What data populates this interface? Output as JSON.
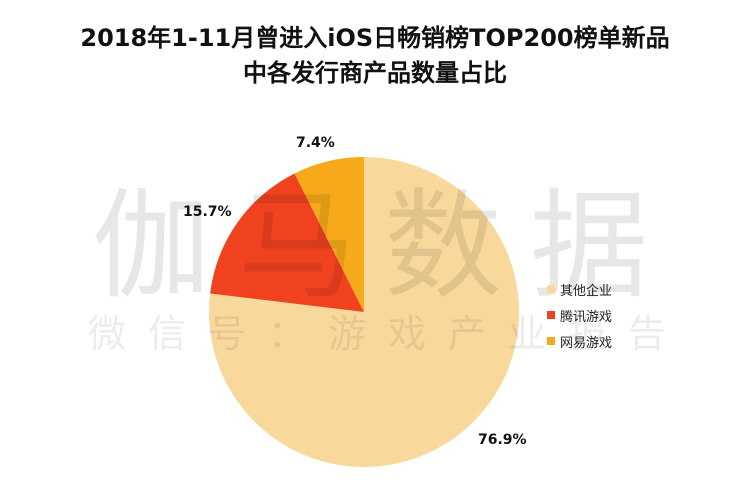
{
  "chart_data": {
    "type": "pie",
    "title": "2018年1-11月曾进入iOS日畅销榜TOP200榜单新品中各发行商产品数量占比",
    "title_lines": [
      "2018年1-11月曾进入iOS日畅销榜TOP200榜单新品",
      "中各发行商产品数量占比"
    ],
    "categories": [
      "其他企业",
      "腾讯游戏",
      "网易游戏"
    ],
    "values": [
      76.9,
      15.7,
      7.4
    ],
    "labels": [
      "76.9%",
      "15.7%",
      "7.4%"
    ],
    "colors": [
      "#f9d89b",
      "#f0421f",
      "#f6a91a"
    ],
    "start_angle": "12 o'clock, clockwise",
    "legend_position": "right"
  },
  "watermark": {
    "main": "伽马数据",
    "sub": "微信号：游戏产业报告"
  }
}
